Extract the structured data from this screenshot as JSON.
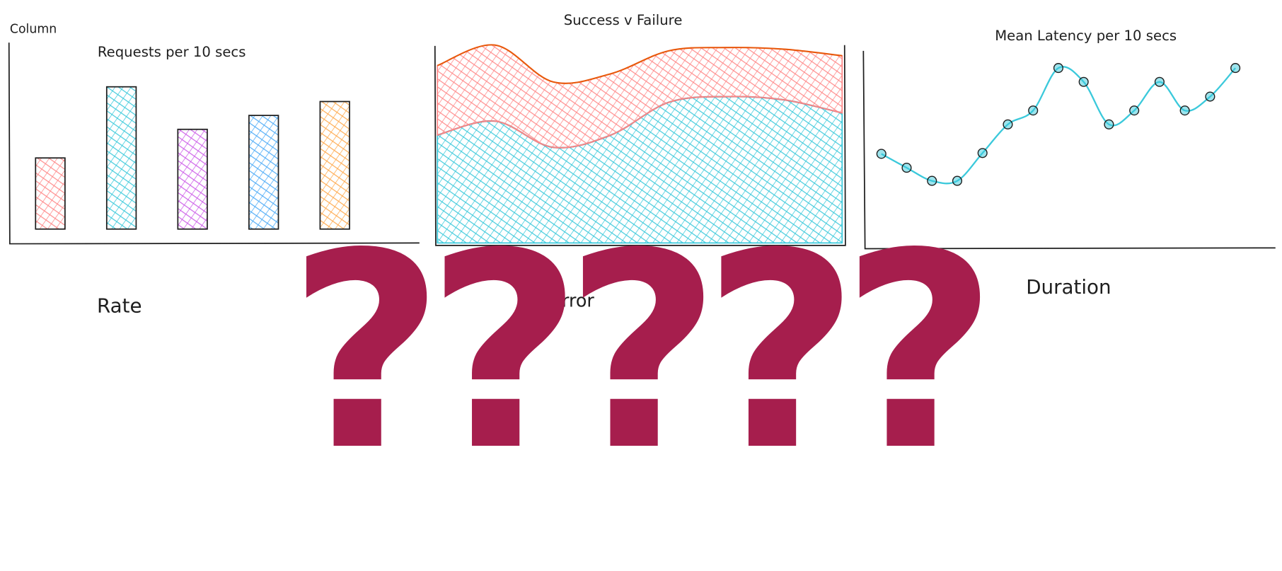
{
  "labels": {
    "column": "Column",
    "rate": "Rate",
    "error": "Error",
    "duration": "Duration",
    "overlay": "?????"
  },
  "chart_data": [
    {
      "type": "bar",
      "title": "Requests per 10 secs",
      "categories": [
        null,
        null,
        null,
        null,
        null
      ],
      "values": [
        87,
        174,
        122,
        139,
        156
      ],
      "colors": [
        "#ff8787",
        "#3bc9db",
        "#cc5de8",
        "#4dabf7",
        "#ffa94d"
      ],
      "ylim": [
        0,
        200
      ]
    },
    {
      "type": "area",
      "title": "Success v Failure",
      "stacked": true,
      "categories": [
        null,
        null,
        null,
        null,
        null,
        null,
        null,
        null
      ],
      "series": [
        {
          "color": "#3bc9db",
          "values": [
            132,
            149,
            117,
            132,
            172,
            179,
            175,
            159
          ]
        },
        {
          "color": "#ff8787",
          "values": [
            85,
            93,
            80,
            75,
            63,
            60,
            62,
            70
          ]
        }
      ],
      "ylim": [
        0,
        250
      ]
    },
    {
      "type": "line",
      "title": "Mean Latency per 10 secs",
      "markers": true,
      "categories": [
        null,
        null,
        null,
        null,
        null,
        null,
        null,
        null,
        null,
        null,
        null,
        null,
        null,
        null,
        null
      ],
      "values": [
        115,
        98,
        82,
        82,
        116,
        151,
        168,
        220,
        203,
        151,
        168,
        203,
        168,
        185,
        220
      ],
      "color": "#3bc9db",
      "ylim": [
        0,
        240
      ]
    }
  ]
}
